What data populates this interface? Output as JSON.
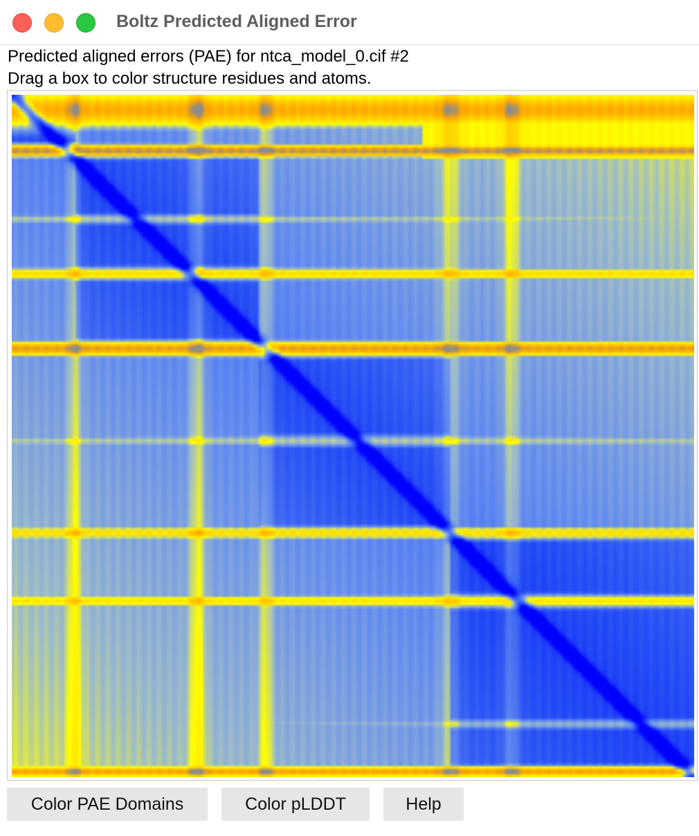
{
  "window": {
    "title": "Boltz Predicted Aligned Error"
  },
  "description": {
    "line1": "Predicted aligned errors (PAE) for ntca_model_0.cif #2",
    "line2": "Drag a box to color structure residues and atoms."
  },
  "plot": {
    "colormap": {
      "low_error": "#0000ff",
      "mid_low": "#4a6ef0",
      "mid": "#7fa0f0",
      "high_mid": "#ffff00",
      "high": "#ffa500",
      "max": "#909090"
    }
  },
  "buttons": {
    "color_pae_domains": "Color PAE Domains",
    "color_plddt": "Color pLDDT",
    "help": "Help"
  }
}
